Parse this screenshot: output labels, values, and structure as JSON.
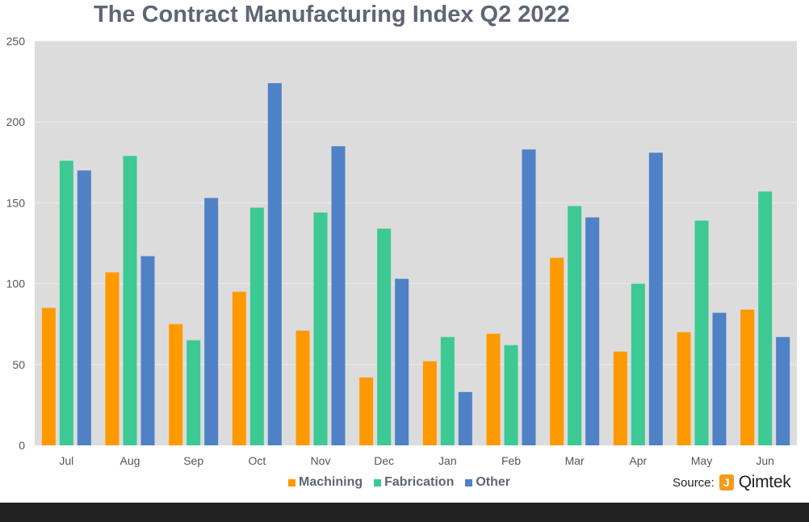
{
  "chart_data": {
    "type": "bar",
    "title": "The Contract Manufacturing Index Q2 2022",
    "xlabel": "",
    "ylabel": "",
    "ylim": [
      0,
      250
    ],
    "yticks": [
      0,
      50,
      100,
      150,
      200,
      250
    ],
    "grid": true,
    "legend_position": "bottom",
    "categories": [
      "Jul",
      "Aug",
      "Sep",
      "Oct",
      "Nov",
      "Dec",
      "Jan",
      "Feb",
      "Mar",
      "Apr",
      "May",
      "Jun"
    ],
    "series": [
      {
        "name": "Machining",
        "color": "#ff9900",
        "values": [
          85,
          107,
          75,
          95,
          71,
          42,
          52,
          69,
          116,
          58,
          70,
          84
        ]
      },
      {
        "name": "Fabrication",
        "color": "#3cc993",
        "values": [
          176,
          179,
          65,
          147,
          144,
          134,
          67,
          62,
          148,
          100,
          139,
          157
        ]
      },
      {
        "name": "Other",
        "color": "#4f81c7",
        "values": [
          170,
          117,
          153,
          224,
          185,
          103,
          33,
          183,
          141,
          181,
          82,
          67
        ]
      }
    ]
  },
  "source": {
    "label": "Source:",
    "brand": "Qimtek",
    "brand_mark": "J"
  },
  "colors": {
    "plot_background": "#dcdcdc",
    "gridline": "#ebebeb",
    "axis_text": "#555555",
    "bottom_bar": "#222222"
  }
}
